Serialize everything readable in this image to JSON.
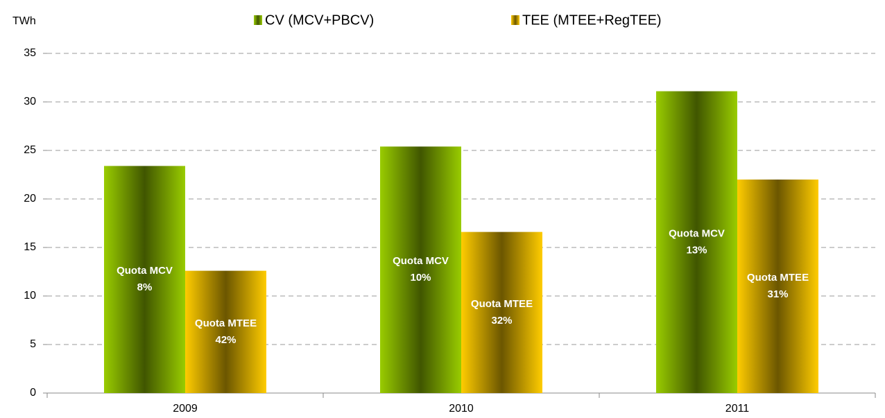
{
  "chart_data": {
    "type": "bar",
    "y_label": "TWh",
    "categories": [
      "2009",
      "2010",
      "2011"
    ],
    "series": [
      {
        "name": "CV (MCV+PBCV)",
        "color": "#99cc00",
        "values": [
          23.4,
          25.4,
          31.1
        ],
        "inner_label": "Quota MCV",
        "share_labels": [
          "8%",
          "10%",
          "13%"
        ]
      },
      {
        "name": "TEE (MTEE+RegTEE)",
        "color": "#ffcc00",
        "values": [
          12.6,
          16.6,
          22.0
        ],
        "inner_label": "Quota MTEE",
        "share_labels": [
          "42%",
          "32%",
          "31%"
        ]
      }
    ],
    "ylim": [
      0,
      35
    ],
    "yticks": [
      0,
      5,
      10,
      15,
      20,
      25,
      30,
      35
    ],
    "grid": true
  }
}
